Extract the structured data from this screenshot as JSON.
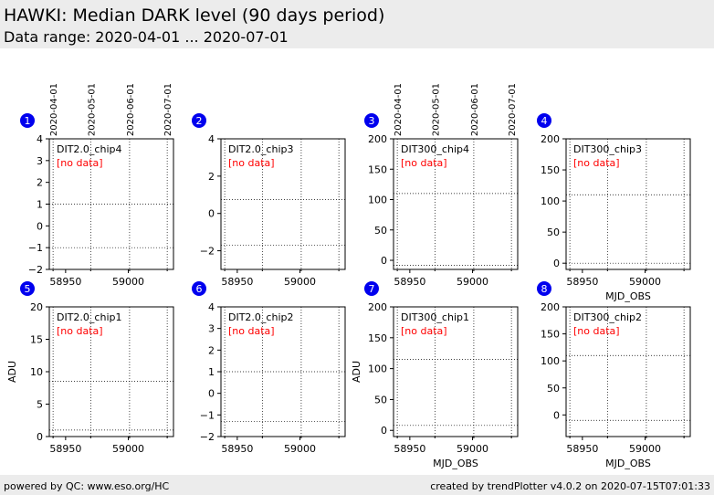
{
  "header": {
    "title": "HAWKI: Median DARK level (90 days period)",
    "subtitle": "Data range: 2020-04-01 ... 2020-07-01"
  },
  "footer": {
    "left": "powered by QC: www.eso.org/HC",
    "right": "created by trendPlotter v4.0.2 on 2020-07-15T07:01:33"
  },
  "colors": {
    "marker": "#0000ee",
    "no_data": "#ff0000",
    "header_bg": "#ececec"
  },
  "date_ticks": [
    "2020-04-01",
    "2020-05-01",
    "2020-06-01",
    "2020-07-01"
  ],
  "chart_data": [
    {
      "number": "1",
      "type": "scatter",
      "label": "DIT2.0_chip4",
      "note": "[no data]",
      "xlabel": "",
      "ylabel": "",
      "xlim": [
        58937,
        59036
      ],
      "x_ticks": [
        58950,
        59000
      ],
      "ylim": [
        -2,
        4
      ],
      "y_ticks": [
        -2,
        -1,
        0,
        1,
        2,
        3,
        4
      ],
      "ref_lines": [
        1,
        -1
      ],
      "date_axis": true,
      "x": [],
      "y": []
    },
    {
      "number": "2",
      "type": "scatter",
      "label": "DIT2.0_chip3",
      "note": "[no data]",
      "xlabel": "",
      "ylabel": "",
      "xlim": [
        58937,
        59036
      ],
      "x_ticks": [
        58950,
        59000
      ],
      "ylim": [
        -3,
        4
      ],
      "y_ticks": [
        -2,
        0,
        2,
        4
      ],
      "ref_lines": [
        0.75,
        -1.7
      ],
      "date_axis": false,
      "x": [],
      "y": []
    },
    {
      "number": "3",
      "type": "scatter",
      "label": "DIT300_chip4",
      "note": "[no data]",
      "xlabel": "",
      "ylabel": "",
      "xlim": [
        58937,
        59036
      ],
      "x_ticks": [
        58950,
        59000
      ],
      "ylim": [
        -15,
        200
      ],
      "y_ticks": [
        0,
        50,
        100,
        150,
        200
      ],
      "ref_lines": [
        110,
        -8
      ],
      "date_axis": true,
      "x": [],
      "y": []
    },
    {
      "number": "4",
      "type": "scatter",
      "label": "DIT300_chip3",
      "note": "[no data]",
      "xlabel": "MJD_OBS",
      "ylabel": "",
      "xlim": [
        58937,
        59036
      ],
      "x_ticks": [
        58950,
        59000
      ],
      "ylim": [
        -10,
        200
      ],
      "y_ticks": [
        0,
        50,
        100,
        150,
        200
      ],
      "ref_lines": [
        110,
        0
      ],
      "date_axis": false,
      "x": [],
      "y": []
    },
    {
      "number": "5",
      "type": "scatter",
      "label": "DIT2.0_chip1",
      "note": "[no data]",
      "xlabel": "",
      "ylabel": "ADU",
      "xlim": [
        58937,
        59036
      ],
      "x_ticks": [
        58950,
        59000
      ],
      "ylim": [
        0,
        20
      ],
      "y_ticks": [
        0,
        5,
        10,
        15,
        20
      ],
      "ref_lines": [
        8.5,
        1
      ],
      "date_axis": false,
      "x": [],
      "y": []
    },
    {
      "number": "6",
      "type": "scatter",
      "label": "DIT2.0_chip2",
      "note": "[no data]",
      "xlabel": "",
      "ylabel": "",
      "xlim": [
        58937,
        59036
      ],
      "x_ticks": [
        58950,
        59000
      ],
      "ylim": [
        -2,
        4
      ],
      "y_ticks": [
        -2,
        -1,
        0,
        1,
        2,
        3,
        4
      ],
      "ref_lines": [
        1,
        -1.3
      ],
      "date_axis": false,
      "x": [],
      "y": []
    },
    {
      "number": "7",
      "type": "scatter",
      "label": "DIT300_chip1",
      "note": "[no data]",
      "xlabel": "MJD_OBS",
      "ylabel": "ADU",
      "xlim": [
        58937,
        59036
      ],
      "x_ticks": [
        58950,
        59000
      ],
      "ylim": [
        -10,
        200
      ],
      "y_ticks": [
        0,
        50,
        100,
        150,
        200
      ],
      "ref_lines": [
        115,
        8
      ],
      "date_axis": false,
      "x": [],
      "y": []
    },
    {
      "number": "8",
      "type": "scatter",
      "label": "DIT300_chip2",
      "note": "[no data]",
      "xlabel": "MJD_OBS",
      "ylabel": "",
      "xlim": [
        58937,
        59036
      ],
      "x_ticks": [
        58950,
        59000
      ],
      "ylim": [
        -40,
        200
      ],
      "y_ticks": [
        0,
        50,
        100,
        150,
        200
      ],
      "ref_lines": [
        110,
        -10
      ],
      "date_axis": false,
      "x": [],
      "y": []
    }
  ]
}
